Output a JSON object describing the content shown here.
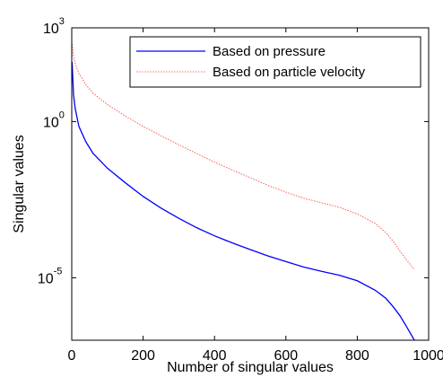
{
  "chart_data": {
    "type": "line",
    "xlabel": "Number of singular values",
    "ylabel": "Singular values",
    "xlim": [
      0,
      1000
    ],
    "ylim": [
      1e-07,
      1000
    ],
    "yscale": "log",
    "grid": false,
    "legend_position": "top-right",
    "x_ticks": [
      {
        "value": 0,
        "label": "0"
      },
      {
        "value": 200,
        "label": "200"
      },
      {
        "value": 400,
        "label": "400"
      },
      {
        "value": 600,
        "label": "600"
      },
      {
        "value": 800,
        "label": "800"
      },
      {
        "value": 1000,
        "label": "1000"
      }
    ],
    "y_ticks": [
      {
        "value": 1000,
        "base": "10",
        "exp": "3"
      },
      {
        "value": 1,
        "base": "10",
        "exp": "0"
      },
      {
        "value": 1e-05,
        "base": "10",
        "exp": "-5"
      }
    ],
    "series": [
      {
        "name": "Based on pressure",
        "color": "#0000ff",
        "style": "solid",
        "x": [
          1,
          5,
          10,
          20,
          40,
          60,
          100,
          150,
          200,
          250,
          300,
          350,
          400,
          450,
          500,
          550,
          600,
          650,
          700,
          750,
          800,
          850,
          880,
          900,
          920,
          940,
          960
        ],
        "y": [
          80,
          7,
          2.5,
          0.7,
          0.22,
          0.095,
          0.032,
          0.011,
          0.004,
          0.0017,
          0.0008,
          0.0004,
          0.00022,
          0.00013,
          8e-05,
          5e-05,
          3.3e-05,
          2.2e-05,
          1.6e-05,
          1.2e-05,
          8e-06,
          4e-06,
          2.2e-06,
          1.2e-06,
          6e-07,
          2.5e-07,
          1e-07
        ]
      },
      {
        "name": "Based on particle velocity",
        "color": "#ff6666",
        "style": "dotted",
        "x": [
          1,
          5,
          10,
          20,
          40,
          60,
          100,
          150,
          200,
          250,
          300,
          350,
          400,
          450,
          500,
          550,
          600,
          650,
          700,
          750,
          800,
          850,
          880,
          900,
          920,
          940,
          960
        ],
        "y": [
          300,
          120,
          70,
          35,
          15,
          8,
          3.5,
          1.5,
          0.7,
          0.35,
          0.18,
          0.095,
          0.05,
          0.028,
          0.016,
          0.009,
          0.0055,
          0.0035,
          0.0025,
          0.0018,
          0.0011,
          0.00055,
          0.00028,
          0.00015,
          7e-05,
          3.5e-05,
          1.8e-05
        ]
      }
    ]
  }
}
